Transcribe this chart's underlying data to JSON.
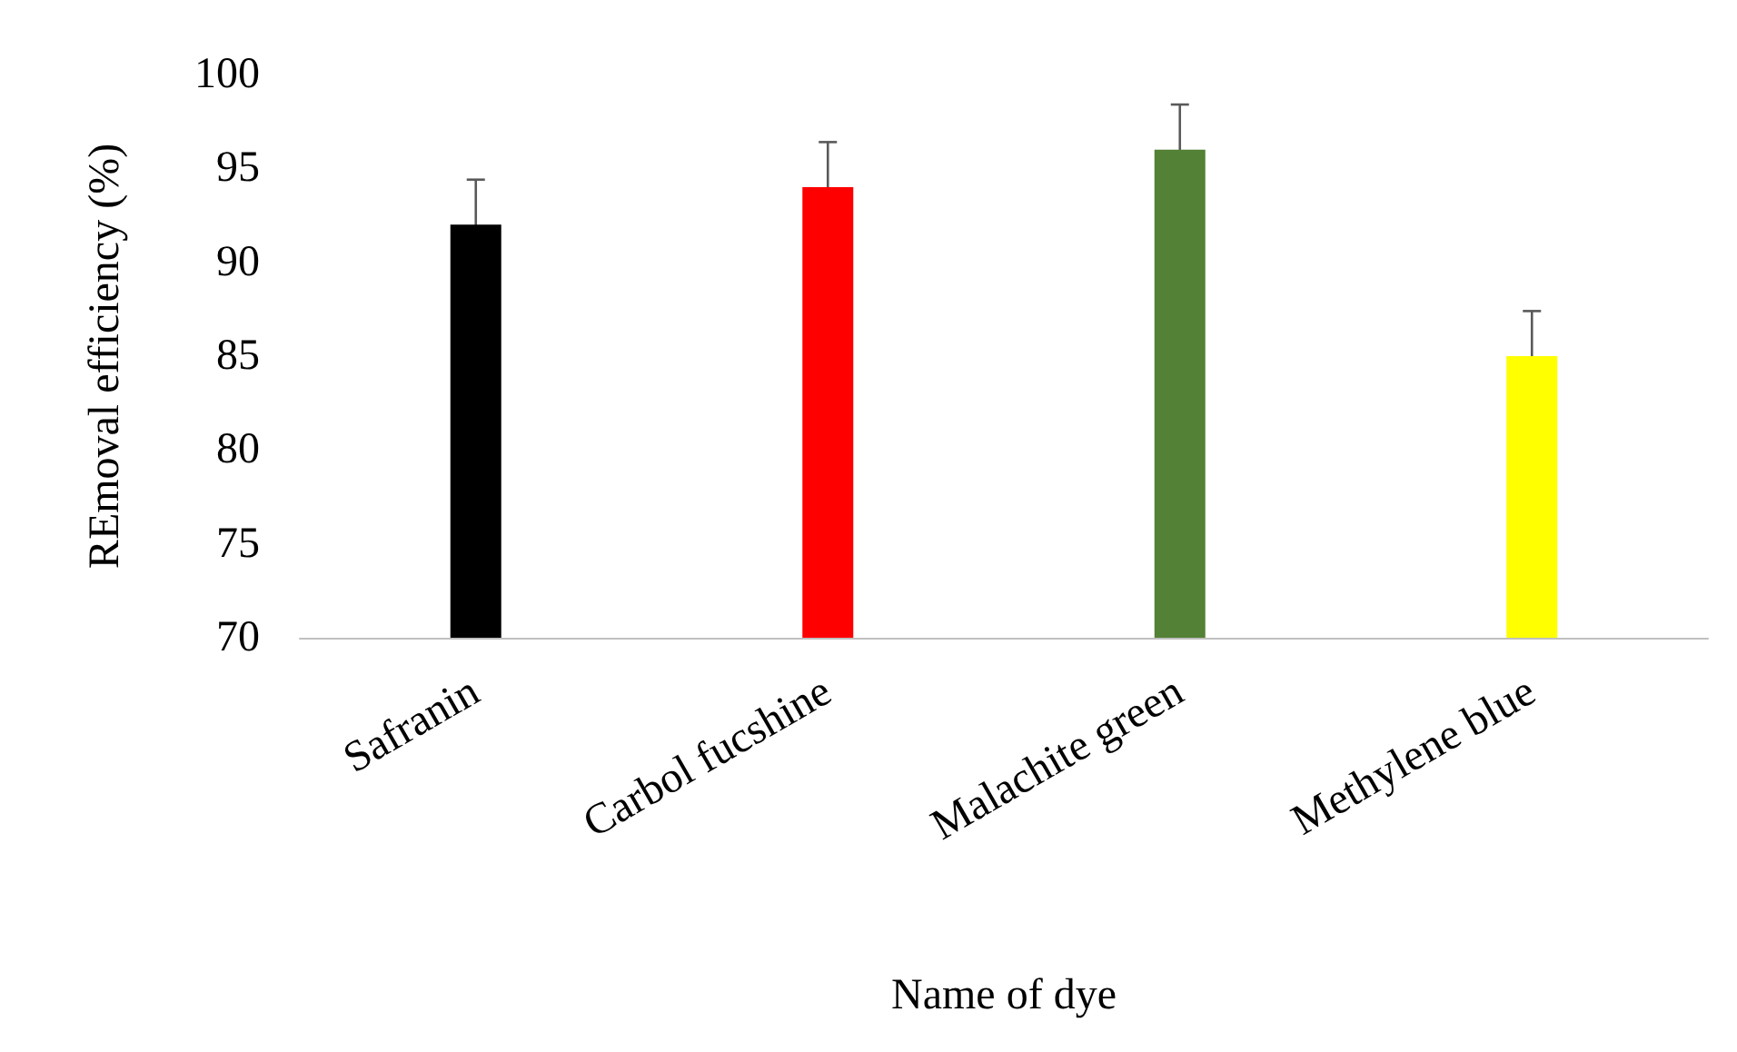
{
  "chart_data": {
    "type": "bar",
    "xlabel": "Name of dye",
    "ylabel": "REmoval efficiency (%)",
    "categories": [
      "Safranin",
      "Carbol fucshine",
      "Malachite green",
      "Methylene blue"
    ],
    "values": [
      92,
      94,
      96,
      85
    ],
    "colors": [
      "#000000",
      "#ff0000",
      "#538135",
      "#ffff00"
    ],
    "errors": [
      2.4,
      2.4,
      2.4,
      2.4
    ],
    "ylim": [
      70,
      100
    ],
    "yticks": [
      70,
      75,
      80,
      85,
      90,
      95,
      100
    ]
  }
}
